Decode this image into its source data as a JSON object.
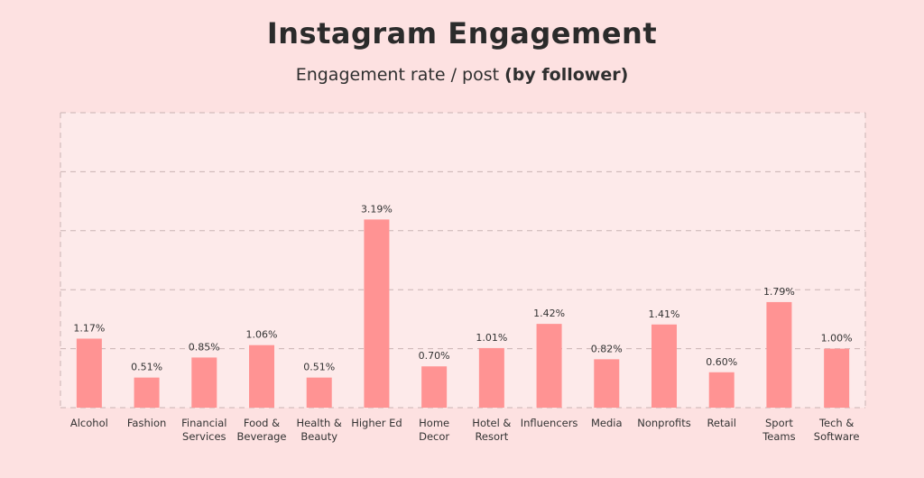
{
  "header": {
    "title": "Instagram Engagement",
    "subtitle_prefix": "Engagement rate / post",
    "subtitle_bold": "(by follower)"
  },
  "colors": {
    "background": "#fde1e1",
    "plot_background": "#fdeaea",
    "bar": "#ff9393"
  },
  "chart_data": {
    "type": "bar",
    "title": "Instagram Engagement",
    "subtitle": "Engagement rate / post (by follower)",
    "xlabel": "",
    "ylabel": "",
    "ylim": [
      0,
      5
    ],
    "grid": true,
    "legend": "none",
    "categories": [
      [
        "Alcohol"
      ],
      [
        "Fashion"
      ],
      [
        "Financial",
        "Services"
      ],
      [
        "Food &",
        "Beverage"
      ],
      [
        "Health &",
        "Beauty"
      ],
      [
        "Higher Ed"
      ],
      [
        "Home",
        "Decor"
      ],
      [
        "Hotel &",
        "Resort"
      ],
      [
        "Influencers"
      ],
      [
        "Media"
      ],
      [
        "Nonprofits"
      ],
      [
        "Retail"
      ],
      [
        "Sport",
        "Teams"
      ],
      [
        "Tech &",
        "Software"
      ]
    ],
    "values": [
      1.17,
      0.51,
      0.85,
      1.06,
      0.51,
      3.19,
      0.7,
      1.01,
      1.42,
      0.82,
      1.41,
      0.6,
      1.79,
      1.0
    ],
    "value_labels": [
      "1.17%",
      "0.51%",
      "0.85%",
      "1.06%",
      "0.51%",
      "3.19%",
      "0.70%",
      "1.01%",
      "1.42%",
      "0.82%",
      "1.41%",
      "0.60%",
      "1.79%",
      "1.00%"
    ]
  }
}
